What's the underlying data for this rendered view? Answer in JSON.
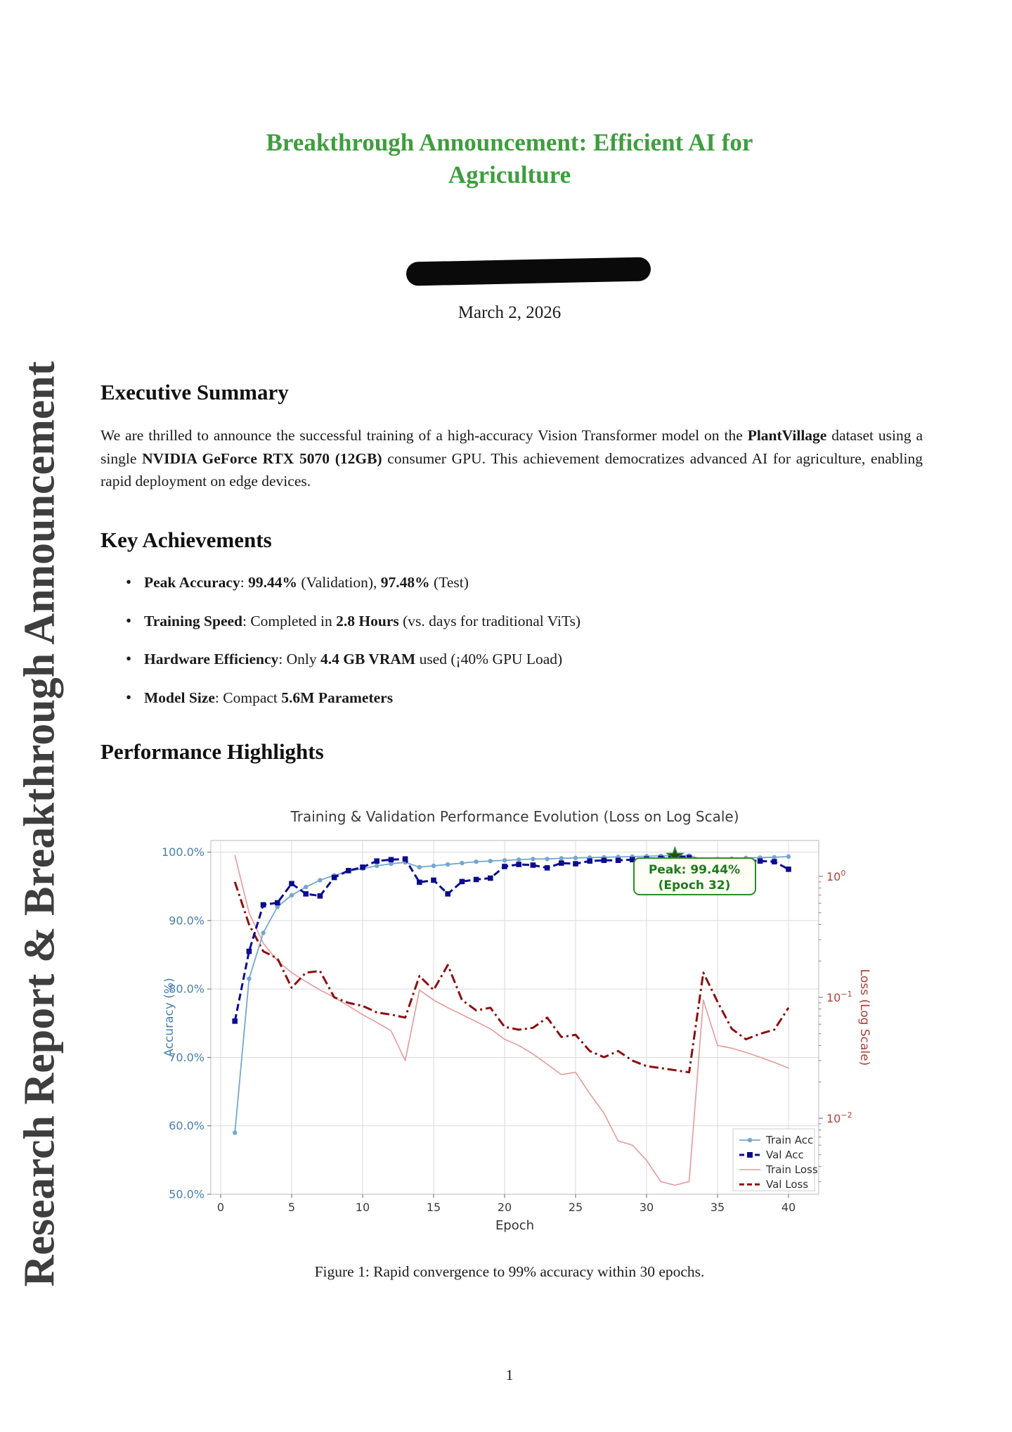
{
  "sidebar_text": "Research Report & Breakthrough Announcement",
  "title": {
    "line1": "Breakthrough Announcement: Efficient AI for",
    "line2": "Agriculture"
  },
  "date": "March 2, 2026",
  "colors": {
    "title_green": "#3d9e3d",
    "sidebar_gray": "#3e3e3e",
    "redaction_black": "#0a0a0a"
  },
  "sections": {
    "exec": {
      "heading": "Executive Summary",
      "paragraph": [
        {
          "t": "We are thrilled to announce the successful training of a high-accuracy Vision Transformer model on the ",
          "b": false
        },
        {
          "t": "PlantVillage",
          "b": true
        },
        {
          "t": " dataset using a single ",
          "b": false
        },
        {
          "t": "NVIDIA GeForce RTX 5070 (12GB)",
          "b": true
        },
        {
          "t": " consumer GPU. This achievement democratizes advanced AI for agriculture, enabling rapid deployment on edge devices.",
          "b": false
        }
      ]
    },
    "achievements": {
      "heading": "Key Achievements",
      "bullets": [
        [
          {
            "t": "Peak Accuracy",
            "b": true
          },
          {
            "t": ": ",
            "b": false
          },
          {
            "t": "99.44%",
            "b": true
          },
          {
            "t": " (Validation), ",
            "b": false
          },
          {
            "t": "97.48%",
            "b": true
          },
          {
            "t": " (Test)",
            "b": false
          }
        ],
        [
          {
            "t": "Training Speed",
            "b": true
          },
          {
            "t": ": Completed in ",
            "b": false
          },
          {
            "t": "2.8 Hours",
            "b": true
          },
          {
            "t": " (vs. days for traditional ViTs)",
            "b": false
          }
        ],
        [
          {
            "t": "Hardware Efficiency",
            "b": true
          },
          {
            "t": ": Only ",
            "b": false
          },
          {
            "t": "4.4 GB VRAM",
            "b": true
          },
          {
            "t": " used (¡40% GPU Load)",
            "b": false
          }
        ],
        [
          {
            "t": "Model Size",
            "b": true
          },
          {
            "t": ": Compact ",
            "b": false
          },
          {
            "t": "5.6M Parameters",
            "b": true
          }
        ]
      ]
    },
    "performance": {
      "heading": "Performance Highlights"
    }
  },
  "figure": {
    "caption": "Figure 1: Rapid convergence to 99% accuracy within 30 epochs."
  },
  "page_number": "1",
  "chart_data": {
    "type": "line",
    "title": "Training & Validation Performance Evolution (Loss on Log Scale)",
    "xlabel": "Epoch",
    "ylabel_left": "Accuracy (%)",
    "ylabel_right": "Loss (Log Scale)",
    "x_ticks": [
      0,
      5,
      10,
      15,
      20,
      25,
      30,
      35,
      40
    ],
    "y_left_ticks_pct": [
      50,
      60,
      70,
      80,
      90,
      100
    ],
    "y_left_range": [
      50,
      101.7
    ],
    "y_right_log_ticks": [
      1,
      0.1,
      0.01
    ],
    "grid": true,
    "legend_position": "lower right",
    "axis_colors": {
      "left_label": "#4a7fae",
      "left_ticks": "#4a7fae",
      "right_label": "#a93c38",
      "right_ticks": "#b3403a",
      "title": "#3a3a3a",
      "grid": "#d9d9d9",
      "spine": "#c4c4c4",
      "x_ticks": "#3a3a3a"
    },
    "annotation": {
      "line1": "Peak: 99.44%",
      "line2": "(Epoch 32)",
      "epoch": 32,
      "value": 99.44,
      "border_color": "#2e8b2e",
      "text_color": "#1d7a1d",
      "fill": "#fffef5",
      "star_color": "#234f23"
    },
    "epochs": [
      1,
      2,
      3,
      4,
      5,
      6,
      7,
      8,
      9,
      10,
      11,
      12,
      13,
      14,
      15,
      16,
      17,
      18,
      19,
      20,
      21,
      22,
      23,
      24,
      25,
      26,
      27,
      28,
      29,
      30,
      31,
      32,
      33,
      34,
      35,
      36,
      37,
      38,
      39,
      40
    ],
    "series": [
      {
        "name": "Train Acc",
        "axis": "left",
        "color": "#74a7cf",
        "style": "solid",
        "lw": 1.8,
        "marker": "circle",
        "values": [
          59.0,
          81.5,
          88.2,
          92.0,
          93.7,
          94.9,
          95.9,
          96.6,
          97.2,
          97.6,
          98.0,
          98.3,
          98.5,
          97.8,
          98.0,
          98.2,
          98.4,
          98.6,
          98.7,
          98.8,
          98.9,
          99.0,
          99.0,
          99.1,
          99.15,
          99.2,
          99.25,
          99.3,
          99.35,
          99.4,
          99.45,
          99.5,
          99.5,
          98.9,
          99.0,
          99.05,
          99.15,
          99.2,
          99.25,
          99.35
        ]
      },
      {
        "name": "Val Acc",
        "axis": "left",
        "color": "#0b0b8f",
        "style": "dashed",
        "lw": 3,
        "marker": "square",
        "values": [
          75.3,
          85.5,
          92.3,
          92.6,
          95.4,
          93.9,
          93.6,
          96.3,
          97.3,
          97.8,
          98.7,
          98.9,
          99.0,
          95.6,
          95.9,
          93.9,
          95.7,
          96.0,
          96.2,
          97.9,
          98.2,
          98.1,
          97.7,
          98.4,
          98.3,
          98.7,
          98.8,
          98.8,
          98.9,
          99.0,
          99.1,
          99.44,
          99.2,
          97.9,
          98.3,
          98.6,
          98.8,
          98.7,
          98.6,
          97.5
        ]
      },
      {
        "name": "Train Loss",
        "axis": "right",
        "color": "#e59a9a",
        "style": "solid",
        "lw": 1.6,
        "marker": "none",
        "values": [
          1.5,
          0.5,
          0.28,
          0.2,
          0.16,
          0.135,
          0.115,
          0.1,
          0.085,
          0.072,
          0.062,
          0.053,
          0.03,
          0.115,
          0.095,
          0.082,
          0.072,
          0.063,
          0.055,
          0.045,
          0.04,
          0.034,
          0.028,
          0.023,
          0.024,
          0.016,
          0.011,
          0.0065,
          0.006,
          0.0045,
          0.003,
          0.0028,
          0.003,
          0.095,
          0.04,
          0.038,
          0.035,
          0.032,
          0.029,
          0.026
        ]
      },
      {
        "name": "Val Loss",
        "axis": "right",
        "color": "#8b0f0f",
        "style": "dashdot",
        "lw": 3,
        "marker": "none",
        "values": [
          0.9,
          0.4,
          0.24,
          0.21,
          0.12,
          0.16,
          0.165,
          0.1,
          0.09,
          0.085,
          0.075,
          0.072,
          0.068,
          0.15,
          0.115,
          0.185,
          0.095,
          0.078,
          0.082,
          0.057,
          0.054,
          0.056,
          0.068,
          0.047,
          0.049,
          0.036,
          0.032,
          0.036,
          0.03,
          0.027,
          0.026,
          0.025,
          0.024,
          0.16,
          0.092,
          0.055,
          0.045,
          0.05,
          0.054,
          0.082
        ]
      }
    ]
  }
}
